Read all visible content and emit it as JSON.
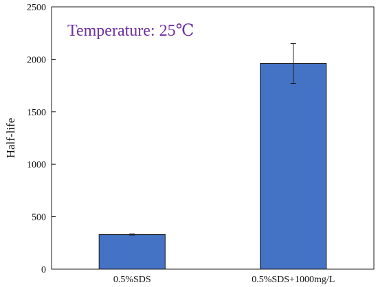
{
  "chart_data": {
    "type": "bar",
    "categories": [
      "0.5%SDS",
      "0.5%SDS+1000mg/L"
    ],
    "values": [
      330,
      1960
    ],
    "errors": [
      5,
      190
    ],
    "title": "",
    "xlabel": "",
    "ylabel": "Half-life",
    "ylim": [
      0,
      2500
    ],
    "yticks": [
      0,
      500,
      1000,
      1500,
      2000,
      2500
    ],
    "annotation": "Temperature: 25℃",
    "grid": false,
    "legend": "none"
  },
  "colors": {
    "bar_fill": "#4472c4",
    "bar_stroke": "#1a1a1a",
    "axis": "#1a1a1a",
    "annotation": "#7030a0"
  }
}
